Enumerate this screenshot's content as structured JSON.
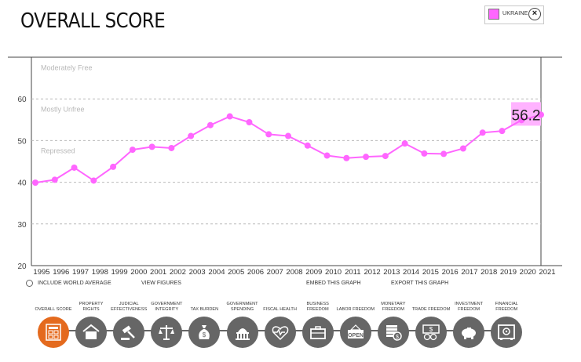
{
  "title": "OVERALL SCORE",
  "legend": {
    "country": "UKRAINE",
    "close_symbol": "×"
  },
  "colors": {
    "series": "#ff66ff",
    "highlight": "#ffb3ff",
    "active": "#e46a1e",
    "inactive": "#666666"
  },
  "chart_data": {
    "type": "line",
    "title": "OVERALL SCORE",
    "xlabel": "",
    "ylabel": "",
    "ylim": [
      20,
      70
    ],
    "yticks": [
      20,
      30,
      40,
      50,
      60
    ],
    "bands": [
      "Moderately Free",
      "Mostly Unfree",
      "Repressed"
    ],
    "x": [
      "1995",
      "1996",
      "1997",
      "1998",
      "1999",
      "2000",
      "2001",
      "2002",
      "2003",
      "2004",
      "2005",
      "2006",
      "2007",
      "2008",
      "2009",
      "2010",
      "2011",
      "2012",
      "2013",
      "2014",
      "2015",
      "2016",
      "2017",
      "2018",
      "2019",
      "2020",
      "2021"
    ],
    "series": [
      {
        "name": "UKRAINE",
        "values": [
          39.9,
          40.6,
          43.5,
          40.4,
          43.7,
          47.8,
          48.5,
          48.2,
          51.1,
          53.7,
          55.8,
          54.4,
          51.5,
          51.1,
          48.8,
          46.4,
          45.8,
          46.1,
          46.3,
          49.3,
          46.9,
          46.8,
          48.1,
          51.9,
          52.3,
          54.9,
          56.2
        ]
      }
    ],
    "highlight_value": "56.2"
  },
  "options": {
    "include_world_average": "INCLUDE WORLD AVERAGE",
    "view_figures": "VIEW FIGURES",
    "embed": "EMBED THIS GRAPH",
    "export": "EXPORT THIS GRAPH"
  },
  "icons": [
    {
      "label": "OVERALL SCORE",
      "icon": "scorecard-icon",
      "active": true
    },
    {
      "label": "PROPERTY RIGHTS",
      "icon": "house-icon"
    },
    {
      "label": "JUDICIAL EFFECTIVENESS",
      "icon": "gavel-icon"
    },
    {
      "label": "GOVERNMENT INTEGRITY",
      "icon": "scales-icon"
    },
    {
      "label": "TAX BURDEN",
      "icon": "money-bag-icon"
    },
    {
      "label": "GOVERNMENT SPENDING",
      "icon": "capitol-icon"
    },
    {
      "label": "FISCAL HEALTH",
      "icon": "heartbeat-icon"
    },
    {
      "label": "BUSINESS FREEDOM",
      "icon": "briefcase-icon"
    },
    {
      "label": "LABOR FREEDOM",
      "icon": "open-sign-icon",
      "text": "OPEN"
    },
    {
      "label": "MONETARY FREEDOM",
      "icon": "coins-icon"
    },
    {
      "label": "TRADE FREEDOM",
      "icon": "banknote-icon"
    },
    {
      "label": "INVESTMENT FREEDOM",
      "icon": "piggy-bank-icon"
    },
    {
      "label": "FINANCIAL FREEDOM",
      "icon": "safe-icon"
    }
  ]
}
